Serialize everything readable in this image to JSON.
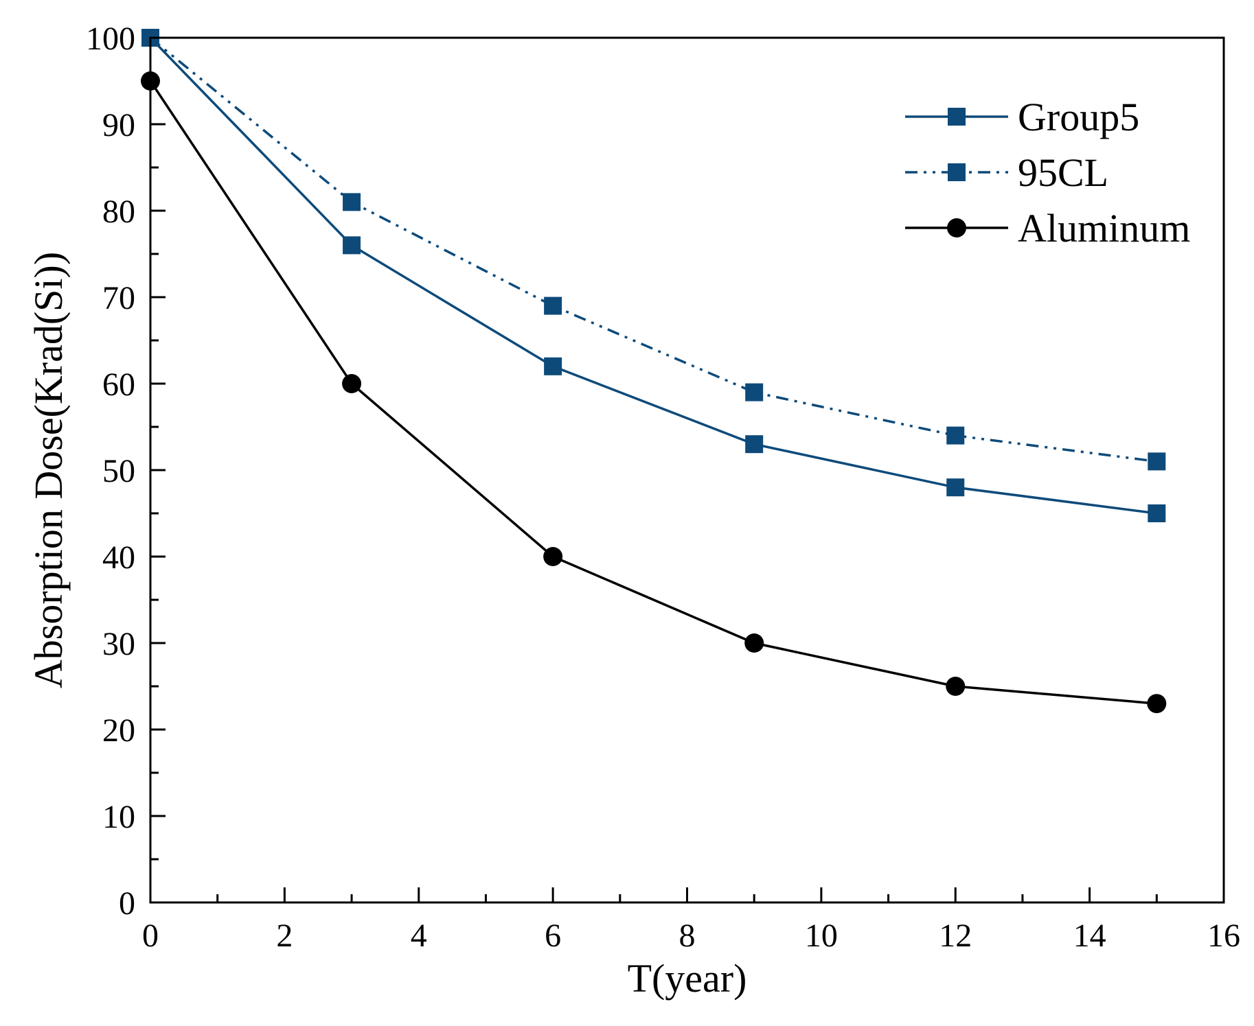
{
  "chart_data": {
    "type": "line",
    "xlabel": "T(year)",
    "ylabel": "Absorption Dose(Krad(Si))",
    "xlim": [
      0,
      16
    ],
    "ylim": [
      0,
      100
    ],
    "x_ticks": [
      0,
      2,
      4,
      6,
      8,
      10,
      12,
      14,
      16
    ],
    "y_ticks": [
      0,
      10,
      20,
      30,
      40,
      50,
      60,
      70,
      80,
      90,
      100
    ],
    "x_tick_labels": [
      "0",
      "2",
      "4",
      "6",
      "8",
      "10",
      "12",
      "14",
      "16"
    ],
    "y_tick_labels": [
      "0",
      "10",
      "20",
      "30",
      "40",
      "50",
      "60",
      "70",
      "80",
      "90",
      "100"
    ],
    "grid": false,
    "legend_position": "top-right",
    "x": [
      0,
      3,
      6,
      9,
      12,
      15
    ],
    "series": [
      {
        "name": "Group5",
        "values": [
          100,
          76,
          62,
          53,
          48,
          45
        ],
        "color": "#0d4a7a",
        "line_style": "solid",
        "marker": "square"
      },
      {
        "name": "95CL",
        "values": [
          100,
          81,
          69,
          59,
          54,
          51
        ],
        "color": "#0d4a7a",
        "line_style": "dash-dot-dot",
        "marker": "square"
      },
      {
        "name": "Aluminum",
        "values": [
          95,
          60,
          40,
          30,
          25,
          23
        ],
        "color": "#000000",
        "line_style": "solid",
        "marker": "circle"
      }
    ]
  }
}
